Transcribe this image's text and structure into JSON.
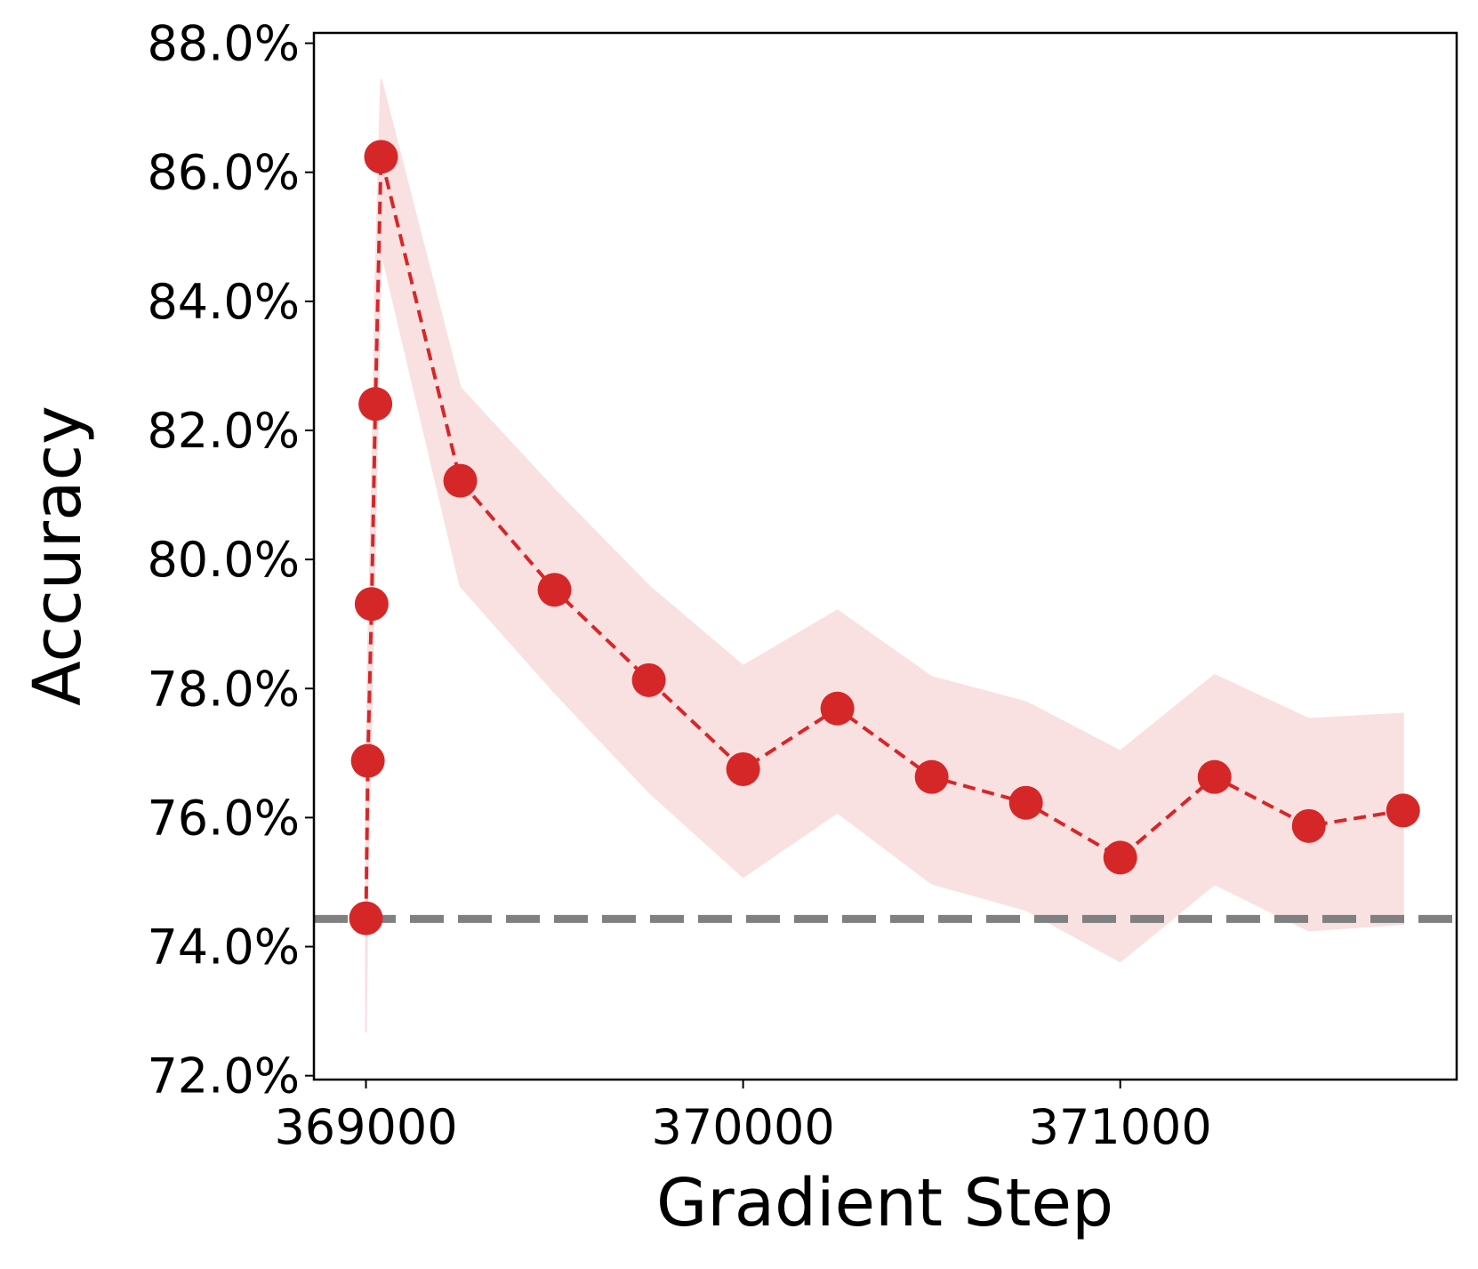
{
  "chart_data": {
    "type": "line",
    "xlabel": "Gradient Step",
    "ylabel": "Accuracy",
    "x": [
      369000,
      369005,
      369015,
      369025,
      369040,
      369250,
      369500,
      369750,
      370000,
      370250,
      370500,
      370750,
      371000,
      371250,
      371500,
      371750
    ],
    "series": [
      {
        "color": "#d62728",
        "band_color": "#f7d6d8",
        "values": [
          74.44,
          76.88,
          79.31,
          82.41,
          86.24,
          81.22,
          79.53,
          78.13,
          76.75,
          77.69,
          76.63,
          76.23,
          75.38,
          76.63,
          75.87,
          76.11
        ],
        "upper": [
          76.2,
          78.5,
          81.0,
          84.3,
          87.44,
          82.66,
          81.08,
          79.59,
          78.35,
          79.21,
          78.18,
          77.79,
          77.03,
          78.21,
          77.53,
          77.61
        ],
        "lower": [
          72.67,
          75.3,
          77.6,
          80.5,
          84.8,
          79.59,
          77.94,
          76.4,
          75.08,
          76.08,
          74.98,
          74.57,
          73.77,
          74.97,
          74.25,
          74.35
        ]
      }
    ],
    "baseline": {
      "value": 74.43,
      "color": "#808080"
    },
    "xlim": [
      368862,
      371892
    ],
    "ylim": [
      71.94,
      88.16
    ],
    "xticks": [
      369000,
      370000,
      371000
    ],
    "yticks": [
      {
        "value": 72,
        "label": "72.0%"
      },
      {
        "value": 74,
        "label": "74.0%"
      },
      {
        "value": 76,
        "label": "76.0%"
      },
      {
        "value": 78,
        "label": "78.0%"
      },
      {
        "value": 80,
        "label": "80.0%"
      },
      {
        "value": 82,
        "label": "82.0%"
      },
      {
        "value": 84,
        "label": "84.0%"
      },
      {
        "value": 86,
        "label": "86.0%"
      },
      {
        "value": 88,
        "label": "88.0%"
      }
    ]
  }
}
